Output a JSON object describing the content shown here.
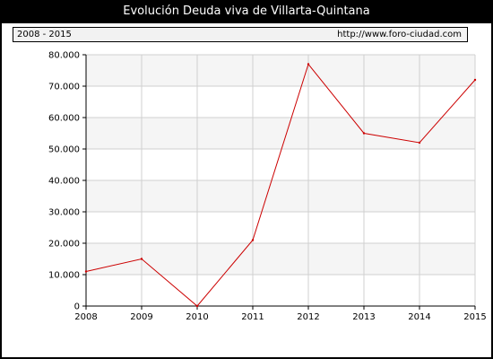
{
  "title": "Evolución Deuda viva de Villarta-Quintana",
  "infobar": {
    "period": "2008 - 2015",
    "site": "http://www.foro-ciudad.com"
  },
  "colors": {
    "line": "#cc0000",
    "band": "#f5f5f5",
    "grid": "#d0d0d0"
  },
  "chart_data": {
    "type": "line",
    "title": "Evolución Deuda viva de Villarta-Quintana",
    "xlabel": "",
    "ylabel": "",
    "x": [
      "2008",
      "2009",
      "2010",
      "2011",
      "2012",
      "2013",
      "2014",
      "2015"
    ],
    "series": [
      {
        "values": [
          11000,
          15000,
          0,
          21000,
          77000,
          55000,
          52000,
          72000
        ]
      }
    ],
    "ylim": [
      0,
      80000
    ],
    "yticks": [
      0,
      10000,
      20000,
      30000,
      40000,
      50000,
      60000,
      70000,
      80000
    ],
    "ytick_labels": [
      "0",
      "10.000",
      "20.000",
      "30.000",
      "40.000",
      "50.000",
      "60.000",
      "70.000",
      "80.000"
    ],
    "grid": true,
    "legend": "none"
  }
}
